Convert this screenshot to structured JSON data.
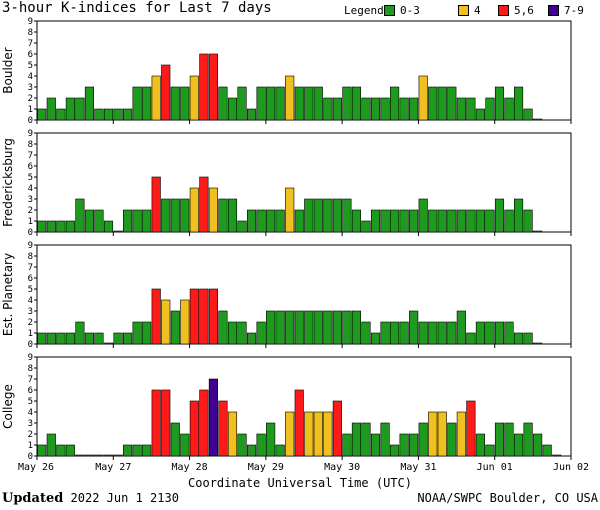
{
  "title": "3-hour K-indices for Last 7 days",
  "legend": {
    "label": "Legend:",
    "items": [
      {
        "text": "0-3",
        "color": "#1e9a1e"
      },
      {
        "text": "4",
        "color": "#f0c020"
      },
      {
        "text": "5,6",
        "color": "#ff1a1a"
      },
      {
        "text": "7-9",
        "color": "#400090"
      }
    ]
  },
  "footer": {
    "updated_label": "Updated",
    "updated_value": "2022 Jun  1 2130",
    "source": "NOAA/SWPC Boulder, CO USA"
  },
  "chart_data": [
    {
      "type": "bar",
      "ylabel": "Boulder",
      "ylim": [
        0,
        9
      ],
      "xlabel": "Coordinate Universal Time (UTC)",
      "x_ticks": [
        "May 26",
        "May 27",
        "May 28",
        "May 29",
        "May 30",
        "May 31",
        "Jun 01",
        "Jun 02"
      ],
      "values": [
        1,
        2,
        1,
        2,
        2,
        3,
        1,
        1,
        1,
        1,
        3,
        3,
        4,
        5,
        3,
        3,
        4,
        6,
        6,
        3,
        2,
        3,
        1,
        3,
        3,
        3,
        4,
        3,
        3,
        3,
        2,
        2,
        3,
        3,
        2,
        2,
        2,
        3,
        2,
        2,
        4,
        3,
        3,
        3,
        2,
        2,
        1,
        2,
        3,
        2,
        3,
        1,
        0
      ]
    },
    {
      "type": "bar",
      "ylabel": "Fredericksburg",
      "ylim": [
        0,
        9
      ],
      "xlabel": "Coordinate Universal Time (UTC)",
      "x_ticks": [
        "May 26",
        "May 27",
        "May 28",
        "May 29",
        "May 30",
        "May 31",
        "Jun 01",
        "Jun 02"
      ],
      "values": [
        1,
        1,
        1,
        1,
        3,
        2,
        2,
        1,
        0,
        2,
        2,
        2,
        5,
        3,
        3,
        3,
        4,
        5,
        4,
        3,
        3,
        1,
        2,
        2,
        2,
        2,
        4,
        2,
        3,
        3,
        3,
        3,
        3,
        2,
        1,
        2,
        2,
        2,
        2,
        2,
        3,
        2,
        2,
        2,
        2,
        2,
        2,
        2,
        3,
        2,
        3,
        2,
        0
      ]
    },
    {
      "type": "bar",
      "ylabel": "Est. Planetary",
      "ylim": [
        0,
        9
      ],
      "xlabel": "Coordinate Universal Time (UTC)",
      "x_ticks": [
        "May 26",
        "May 27",
        "May 28",
        "May 29",
        "May 30",
        "May 31",
        "Jun 01",
        "Jun 02"
      ],
      "values": [
        1,
        1,
        1,
        1,
        2,
        1,
        1,
        0,
        1,
        1,
        2,
        2,
        5,
        4,
        3,
        4,
        5,
        5,
        5,
        3,
        2,
        2,
        1,
        2,
        3,
        3,
        3,
        3,
        3,
        3,
        3,
        3,
        3,
        3,
        2,
        1,
        2,
        2,
        2,
        3,
        2,
        2,
        2,
        2,
        3,
        1,
        2,
        2,
        2,
        2,
        1,
        1,
        0
      ]
    },
    {
      "type": "bar",
      "ylabel": "College",
      "ylim": [
        0,
        9
      ],
      "xlabel": "Coordinate Universal Time (UTC)",
      "x_ticks": [
        "May 26",
        "May 27",
        "May 28",
        "May 29",
        "May 30",
        "May 31",
        "Jun 01",
        "Jun 02"
      ],
      "values": [
        1,
        2,
        1,
        1,
        0,
        0,
        0,
        0,
        0,
        1,
        1,
        1,
        6,
        6,
        3,
        2,
        5,
        6,
        7,
        5,
        4,
        2,
        1,
        2,
        3,
        1,
        4,
        6,
        4,
        4,
        4,
        5,
        2,
        3,
        3,
        2,
        3,
        1,
        2,
        2,
        3,
        4,
        4,
        3,
        4,
        5,
        2,
        1,
        3,
        3,
        2,
        3,
        2,
        1,
        0
      ]
    }
  ]
}
